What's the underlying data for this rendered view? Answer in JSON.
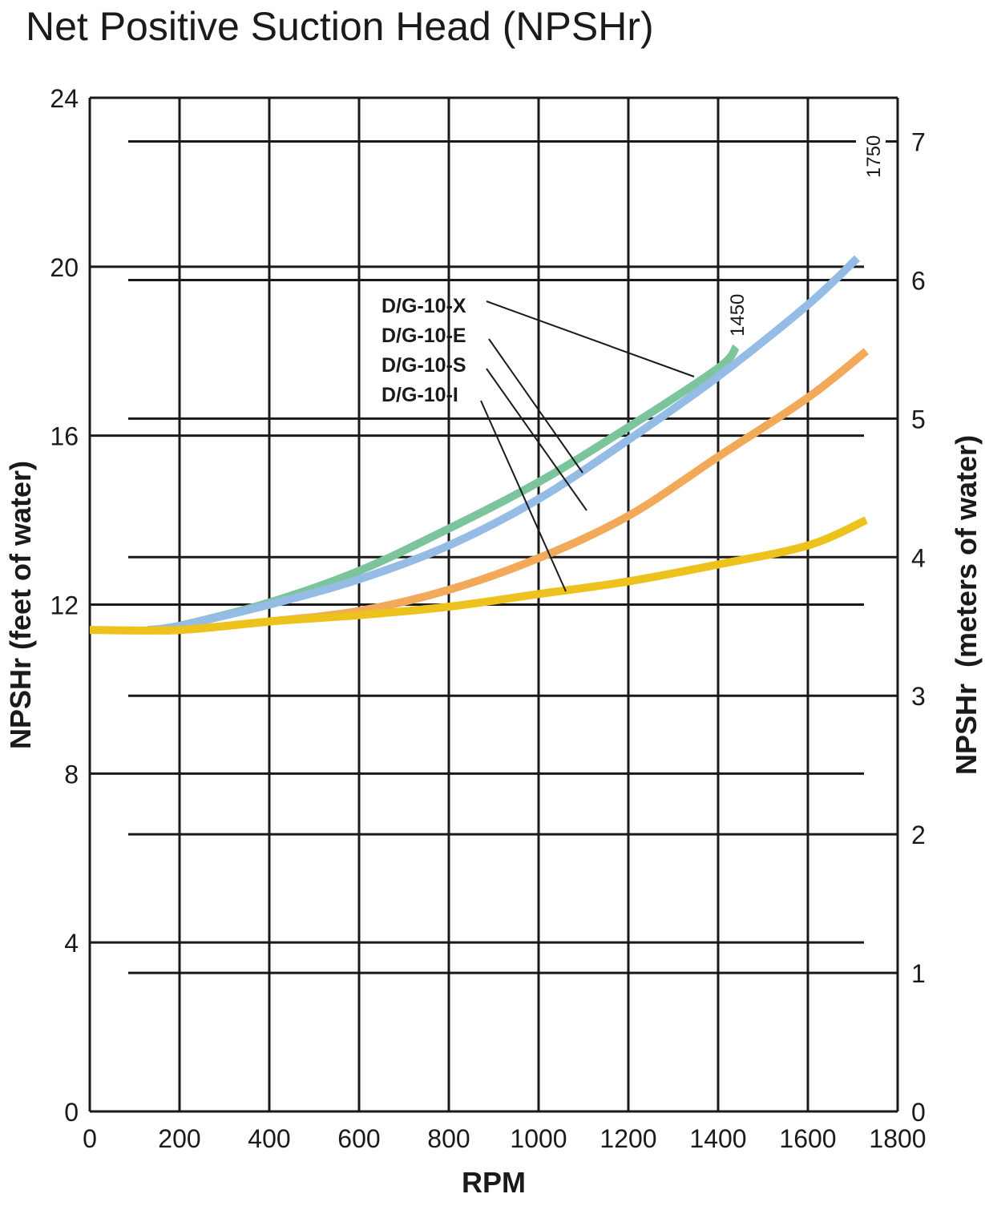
{
  "chart_data": {
    "type": "line",
    "title": "Net Positive Suction Head (NPSHr)",
    "xlabel": "RPM",
    "ylabel": "NPSHr (feet of water)",
    "y2label": "NPSHr  (meters of water)",
    "xlim": [
      0,
      1800
    ],
    "ylim": [
      0,
      24
    ],
    "y2lim": [
      0,
      7.3
    ],
    "grid": true,
    "x_ticks": [
      "0",
      "200",
      "400",
      "600",
      "800",
      "1000",
      "1200",
      "1400",
      "1600",
      "1800"
    ],
    "y_ticks": [
      "0",
      "4",
      "8",
      "12",
      "16",
      "20",
      "24"
    ],
    "y2_ticks": [
      "0",
      "1",
      "2",
      "3",
      "4",
      "5",
      "6",
      "7"
    ],
    "annotations": [
      "1450",
      "1750"
    ],
    "series": [
      {
        "name": "D/G-10-X",
        "color": "#7cc49b",
        "x": [
          130,
          200,
          400,
          600,
          800,
          1000,
          1200,
          1400,
          1440
        ],
        "y": [
          11.4,
          11.5,
          12.05,
          12.8,
          13.8,
          14.9,
          16.2,
          17.6,
          18.1
        ]
      },
      {
        "name": "D/G-10-E",
        "color": "#94bce4",
        "x": [
          130,
          200,
          400,
          600,
          800,
          1000,
          1200,
          1400,
          1600,
          1710
        ],
        "y": [
          11.4,
          11.5,
          12.0,
          12.6,
          13.4,
          14.5,
          15.9,
          17.4,
          19.1,
          20.2
        ]
      },
      {
        "name": "D/G-10-S",
        "color": "#f2aa5a",
        "x": [
          150,
          200,
          400,
          600,
          800,
          1000,
          1200,
          1400,
          1600,
          1730
        ],
        "y": [
          11.4,
          11.4,
          11.6,
          11.85,
          12.35,
          13.1,
          14.1,
          15.5,
          16.9,
          18.0
        ]
      },
      {
        "name": "D/G-10-I",
        "color": "#eec21c",
        "x": [
          0,
          200,
          400,
          600,
          800,
          1000,
          1200,
          1400,
          1600,
          1730
        ],
        "y": [
          11.4,
          11.4,
          11.6,
          11.75,
          11.95,
          12.25,
          12.55,
          12.95,
          13.4,
          14.0
        ]
      }
    ]
  }
}
